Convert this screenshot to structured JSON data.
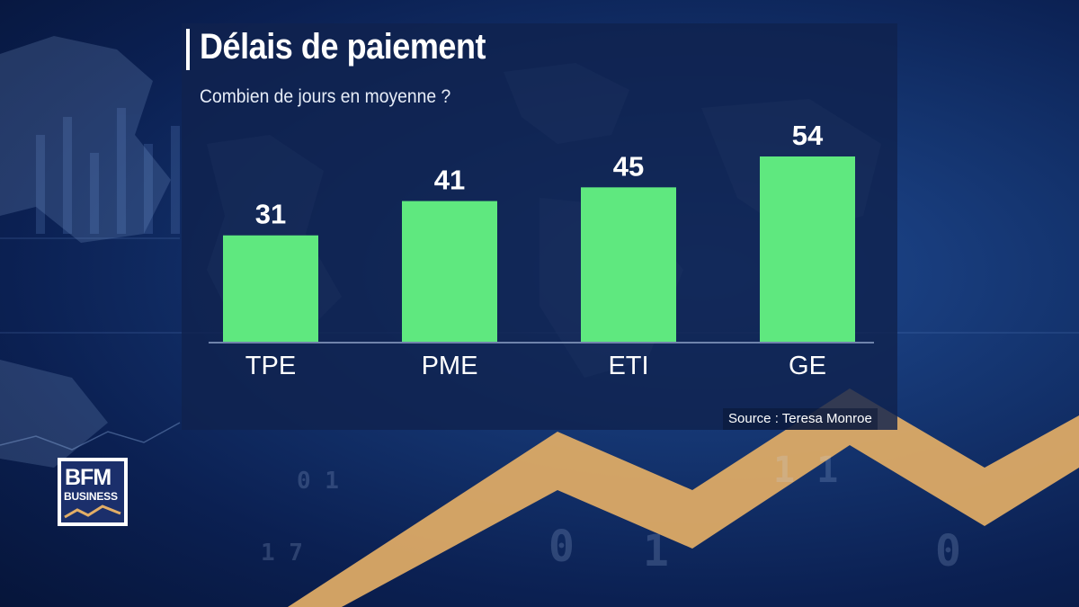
{
  "title": "Délais de paiement",
  "subtitle": "Combien de jours en moyenne ?",
  "source": "Source : Teresa Monroe",
  "logo": {
    "line1": "BFM",
    "line2": "BUSINESS"
  },
  "colors": {
    "bar": "#5fe87f",
    "trend_line": "#e9b56c",
    "background": "#14346f"
  },
  "chart_data": {
    "type": "bar",
    "categories": [
      "TPE",
      "PME",
      "ETI",
      "GE"
    ],
    "values": [
      31,
      41,
      45,
      54
    ],
    "title": "Délais de paiement",
    "subtitle": "Combien de jours en moyenne ?",
    "xlabel": "",
    "ylabel": "",
    "ylim": [
      0,
      54
    ],
    "grid": false,
    "legend": "none",
    "data_labels": true
  }
}
